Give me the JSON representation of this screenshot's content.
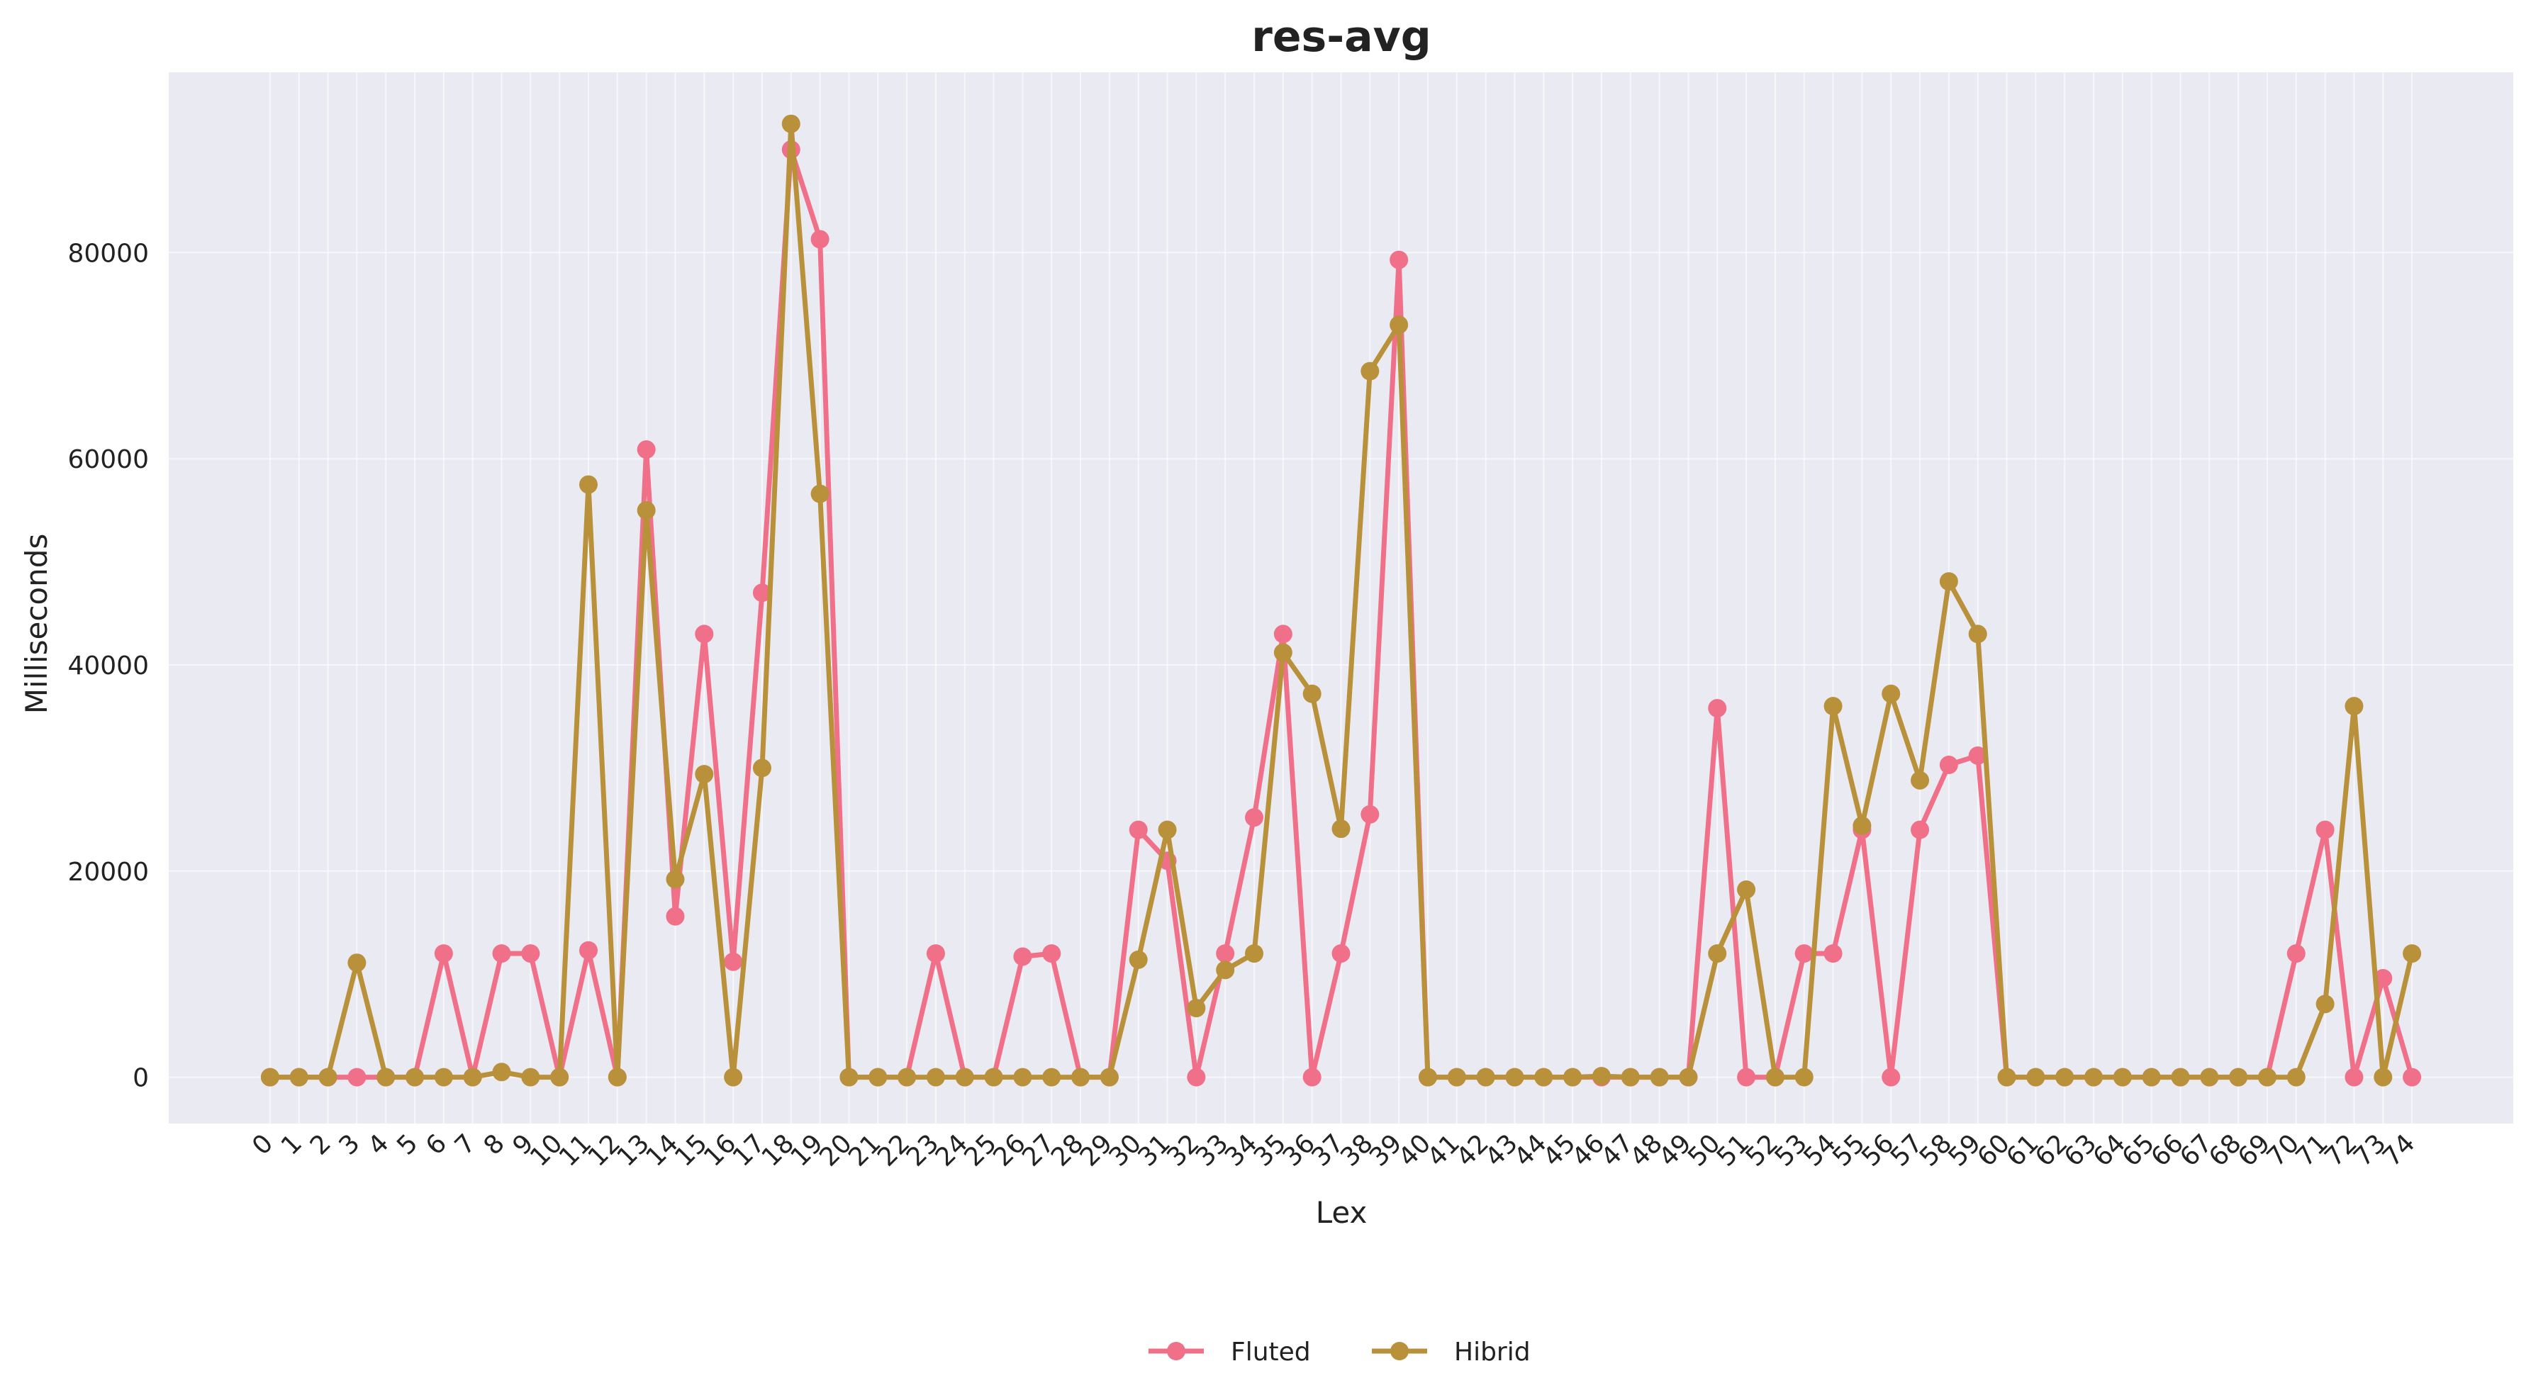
{
  "chart_data": {
    "type": "line",
    "title": "res-avg",
    "xlabel": "Lex",
    "ylabel": "Milliseconds",
    "x": [
      0,
      1,
      2,
      3,
      4,
      5,
      6,
      7,
      8,
      9,
      10,
      11,
      12,
      13,
      14,
      15,
      16,
      17,
      18,
      19,
      20,
      21,
      22,
      23,
      24,
      25,
      26,
      27,
      28,
      29,
      30,
      31,
      32,
      33,
      34,
      35,
      36,
      37,
      38,
      39,
      40,
      41,
      42,
      43,
      44,
      45,
      46,
      47,
      48,
      49,
      50,
      51,
      52,
      53,
      54,
      55,
      56,
      57,
      58,
      59,
      60,
      61,
      62,
      63,
      64,
      65,
      66,
      67,
      68,
      69,
      70,
      71,
      72,
      73,
      74
    ],
    "yticks": [
      0,
      20000,
      40000,
      60000,
      80000
    ],
    "ylim": [
      -4500,
      97500
    ],
    "grid": true,
    "legend": "bottom-center",
    "series": [
      {
        "name": "Fluted",
        "color": "#f0708a",
        "values": [
          0,
          0,
          0,
          0,
          0,
          0,
          12000,
          0,
          12000,
          12000,
          0,
          12300,
          0,
          60900,
          15600,
          43000,
          11200,
          47000,
          90000,
          81300,
          0,
          0,
          0,
          12000,
          0,
          0,
          11700,
          12000,
          0,
          0,
          24000,
          21000,
          0,
          12000,
          25200,
          43000,
          0,
          12000,
          25500,
          79300,
          0,
          0,
          0,
          0,
          0,
          0,
          0,
          0,
          0,
          0,
          35800,
          0,
          0,
          12000,
          12000,
          24000,
          0,
          24000,
          30300,
          31200,
          0,
          0,
          0,
          0,
          0,
          0,
          0,
          0,
          0,
          0,
          12000,
          24000,
          0,
          9600,
          0
        ]
      },
      {
        "name": "Hibrid",
        "color": "#b8913a",
        "values": [
          0,
          0,
          0,
          11100,
          0,
          0,
          0,
          0,
          500,
          0,
          0,
          57500,
          0,
          55000,
          19200,
          29400,
          0,
          30000,
          92500,
          56600,
          0,
          0,
          0,
          0,
          0,
          0,
          0,
          0,
          0,
          0,
          11400,
          24000,
          6700,
          10400,
          12000,
          41200,
          37200,
          24100,
          68500,
          73000,
          0,
          0,
          0,
          0,
          0,
          0,
          100,
          0,
          0,
          0,
          12000,
          18200,
          0,
          0,
          36000,
          24400,
          37200,
          28800,
          48100,
          43000,
          0,
          0,
          0,
          0,
          0,
          0,
          0,
          0,
          0,
          0,
          0,
          7100,
          36000,
          0,
          12000
        ]
      }
    ]
  }
}
